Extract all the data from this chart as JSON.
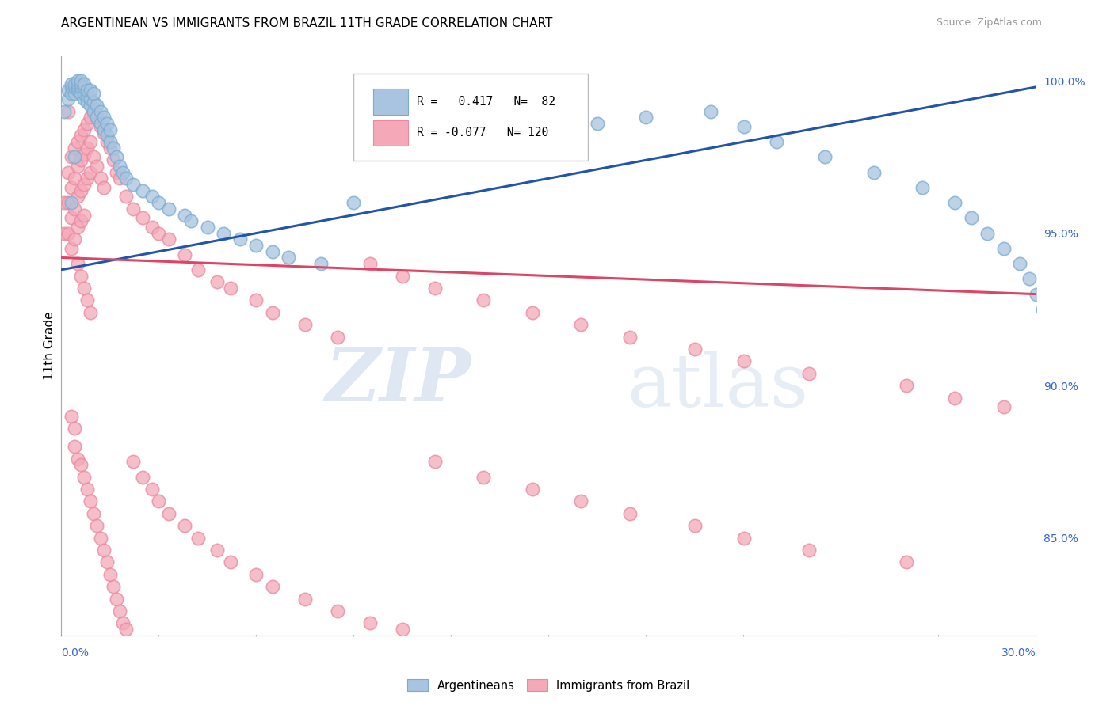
{
  "title": "ARGENTINEAN VS IMMIGRANTS FROM BRAZIL 11TH GRADE CORRELATION CHART",
  "source": "Source: ZipAtlas.com",
  "ylabel": "11th Grade",
  "right_yticks": [
    "85.0%",
    "90.0%",
    "95.0%",
    "100.0%"
  ],
  "right_ytick_vals": [
    0.85,
    0.9,
    0.95,
    1.0
  ],
  "xlim": [
    0.0,
    0.3
  ],
  "ylim": [
    0.818,
    1.008
  ],
  "blue_R": 0.417,
  "blue_N": 82,
  "pink_R": -0.077,
  "pink_N": 120,
  "blue_color": "#a8c4e0",
  "pink_color": "#f4a8b8",
  "blue_edge_color": "#7aacd0",
  "pink_edge_color": "#e88aa0",
  "blue_line_color": "#2255aa",
  "pink_line_color": "#dd4466",
  "watermark_zip": "ZIP",
  "watermark_atlas": "atlas",
  "blue_line_x": [
    0.0,
    0.3
  ],
  "blue_line_y": [
    0.938,
    0.998
  ],
  "pink_line_x": [
    0.0,
    0.3
  ],
  "pink_line_y": [
    0.942,
    0.93
  ],
  "blue_dots_x": [
    0.001,
    0.002,
    0.002,
    0.003,
    0.003,
    0.003,
    0.004,
    0.004,
    0.004,
    0.005,
    0.005,
    0.005,
    0.005,
    0.006,
    0.006,
    0.006,
    0.006,
    0.007,
    0.007,
    0.007,
    0.007,
    0.008,
    0.008,
    0.008,
    0.009,
    0.009,
    0.009,
    0.01,
    0.01,
    0.01,
    0.011,
    0.011,
    0.012,
    0.012,
    0.013,
    0.013,
    0.014,
    0.014,
    0.015,
    0.015,
    0.016,
    0.017,
    0.018,
    0.019,
    0.02,
    0.022,
    0.025,
    0.028,
    0.03,
    0.033,
    0.038,
    0.04,
    0.045,
    0.05,
    0.055,
    0.06,
    0.065,
    0.07,
    0.08,
    0.09,
    0.1,
    0.115,
    0.13,
    0.145,
    0.165,
    0.18,
    0.2,
    0.21,
    0.22,
    0.235,
    0.25,
    0.265,
    0.275,
    0.28,
    0.285,
    0.29,
    0.295,
    0.298,
    0.3,
    0.302,
    0.003,
    0.004
  ],
  "blue_dots_y": [
    0.99,
    0.994,
    0.997,
    0.996,
    0.998,
    0.999,
    0.996,
    0.998,
    0.999,
    0.997,
    0.998,
    0.999,
    1.0,
    0.996,
    0.998,
    0.999,
    1.0,
    0.994,
    0.996,
    0.998,
    0.999,
    0.993,
    0.995,
    0.997,
    0.992,
    0.994,
    0.997,
    0.99,
    0.993,
    0.996,
    0.988,
    0.992,
    0.986,
    0.99,
    0.984,
    0.988,
    0.982,
    0.986,
    0.98,
    0.984,
    0.978,
    0.975,
    0.972,
    0.97,
    0.968,
    0.966,
    0.964,
    0.962,
    0.96,
    0.958,
    0.956,
    0.954,
    0.952,
    0.95,
    0.948,
    0.946,
    0.944,
    0.942,
    0.94,
    0.96,
    0.978,
    0.98,
    0.982,
    0.984,
    0.986,
    0.988,
    0.99,
    0.985,
    0.98,
    0.975,
    0.97,
    0.965,
    0.96,
    0.955,
    0.95,
    0.945,
    0.94,
    0.935,
    0.93,
    0.925,
    0.96,
    0.975
  ],
  "pink_dots_x": [
    0.001,
    0.001,
    0.002,
    0.002,
    0.002,
    0.003,
    0.003,
    0.003,
    0.003,
    0.004,
    0.004,
    0.004,
    0.004,
    0.005,
    0.005,
    0.005,
    0.005,
    0.006,
    0.006,
    0.006,
    0.006,
    0.007,
    0.007,
    0.007,
    0.007,
    0.008,
    0.008,
    0.008,
    0.009,
    0.009,
    0.009,
    0.01,
    0.01,
    0.011,
    0.011,
    0.012,
    0.012,
    0.013,
    0.013,
    0.014,
    0.015,
    0.016,
    0.017,
    0.018,
    0.02,
    0.022,
    0.025,
    0.028,
    0.03,
    0.033,
    0.038,
    0.042,
    0.048,
    0.052,
    0.06,
    0.065,
    0.075,
    0.085,
    0.095,
    0.105,
    0.115,
    0.13,
    0.145,
    0.16,
    0.175,
    0.195,
    0.21,
    0.23,
    0.26,
    0.275,
    0.29,
    0.005,
    0.006,
    0.007,
    0.008,
    0.009,
    0.003,
    0.004,
    0.004,
    0.005,
    0.006,
    0.007,
    0.008,
    0.009,
    0.01,
    0.011,
    0.012,
    0.013,
    0.014,
    0.015,
    0.016,
    0.017,
    0.018,
    0.019,
    0.02,
    0.022,
    0.025,
    0.028,
    0.03,
    0.033,
    0.038,
    0.042,
    0.048,
    0.052,
    0.06,
    0.065,
    0.075,
    0.085,
    0.095,
    0.105,
    0.115,
    0.13,
    0.145,
    0.16,
    0.175,
    0.195,
    0.21,
    0.23,
    0.26,
    0.002
  ],
  "pink_dots_y": [
    0.96,
    0.95,
    0.97,
    0.96,
    0.95,
    0.975,
    0.965,
    0.955,
    0.945,
    0.978,
    0.968,
    0.958,
    0.948,
    0.98,
    0.972,
    0.962,
    0.952,
    0.982,
    0.974,
    0.964,
    0.954,
    0.984,
    0.976,
    0.966,
    0.956,
    0.986,
    0.978,
    0.968,
    0.988,
    0.98,
    0.97,
    0.99,
    0.975,
    0.988,
    0.972,
    0.985,
    0.968,
    0.983,
    0.965,
    0.98,
    0.978,
    0.974,
    0.97,
    0.968,
    0.962,
    0.958,
    0.955,
    0.952,
    0.95,
    0.948,
    0.943,
    0.938,
    0.934,
    0.932,
    0.928,
    0.924,
    0.92,
    0.916,
    0.94,
    0.936,
    0.932,
    0.928,
    0.924,
    0.92,
    0.916,
    0.912,
    0.908,
    0.904,
    0.9,
    0.896,
    0.893,
    0.94,
    0.936,
    0.932,
    0.928,
    0.924,
    0.89,
    0.886,
    0.88,
    0.876,
    0.874,
    0.87,
    0.866,
    0.862,
    0.858,
    0.854,
    0.85,
    0.846,
    0.842,
    0.838,
    0.834,
    0.83,
    0.826,
    0.822,
    0.82,
    0.875,
    0.87,
    0.866,
    0.862,
    0.858,
    0.854,
    0.85,
    0.846,
    0.842,
    0.838,
    0.834,
    0.83,
    0.826,
    0.822,
    0.82,
    0.875,
    0.87,
    0.866,
    0.862,
    0.858,
    0.854,
    0.85,
    0.846,
    0.842,
    0.99
  ]
}
